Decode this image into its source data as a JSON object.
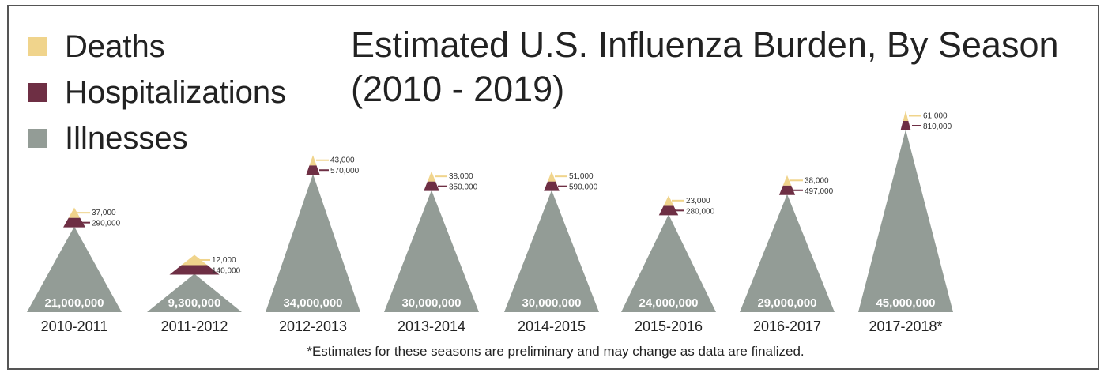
{
  "chart_data": {
    "type": "area",
    "title": "Estimated U.S. Influenza Burden, By Season",
    "subtitle": "(2010 - 2019)",
    "legend": {
      "placement": "top-left",
      "items": [
        {
          "name": "Deaths",
          "color": "#f0d48c"
        },
        {
          "name": "Hospitalizations",
          "color": "#6e2f44"
        },
        {
          "name": "Illnesses",
          "color": "#939c96"
        }
      ]
    },
    "categories": [
      "2010-2011",
      "2011-2012",
      "2012-2013",
      "2013-2014",
      "2014-2015",
      "2015-2016",
      "2016-2017",
      "2017-2018*"
    ],
    "series": [
      {
        "name": "Illnesses",
        "values": [
          21000000,
          9300000,
          34000000,
          30000000,
          30000000,
          24000000,
          29000000,
          45000000
        ],
        "labels": [
          "21,000,000",
          "9,300,000",
          "34,000,000",
          "30,000,000",
          "30,000,000",
          "24,000,000",
          "29,000,000",
          "45,000,000"
        ]
      },
      {
        "name": "Hospitalizations",
        "values": [
          290000,
          140000,
          570000,
          350000,
          590000,
          280000,
          497000,
          810000
        ],
        "labels": [
          "290,000",
          "140,000",
          "570,000",
          "350,000",
          "590,000",
          "280,000",
          "497,000",
          "810,000"
        ]
      },
      {
        "name": "Deaths",
        "values": [
          37000,
          12000,
          43000,
          38000,
          51000,
          23000,
          38000,
          61000
        ],
        "labels": [
          "37,000",
          "12,000",
          "43,000",
          "38,000",
          "51,000",
          "23,000",
          "38,000",
          "61,000"
        ]
      }
    ],
    "footnote": "*Estimates for these seasons are preliminary and may change as data are finalized.",
    "grid": false
  }
}
